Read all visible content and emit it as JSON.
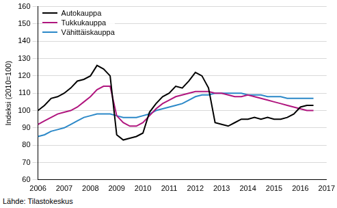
{
  "chart_data": {
    "type": "line",
    "y_label": "Indeksi (2010=100)",
    "source": "Lähde: Tilastokeskus",
    "x": [
      2006,
      2006.25,
      2006.5,
      2006.75,
      2007,
      2007.25,
      2007.5,
      2007.75,
      2008,
      2008.25,
      2008.5,
      2008.75,
      2009,
      2009.25,
      2009.5,
      2009.75,
      2010,
      2010.25,
      2010.5,
      2010.75,
      2011,
      2011.25,
      2011.5,
      2011.75,
      2012,
      2012.25,
      2012.5,
      2012.75,
      2013,
      2013.25,
      2013.5,
      2013.75,
      2014,
      2014.25,
      2014.5,
      2014.75,
      2015,
      2015.25,
      2015.5,
      2015.75,
      2016,
      2016.25,
      2016.5
    ],
    "series": [
      {
        "name": "Autokauppa",
        "color": "#000000",
        "values": [
          100,
          103,
          107,
          108,
          110,
          113,
          117,
          118,
          120,
          126,
          124,
          120,
          86,
          83,
          84,
          85,
          87,
          99,
          104,
          108,
          110,
          114,
          113,
          117,
          122,
          120,
          113,
          93,
          92,
          91,
          93,
          95,
          95,
          96,
          95,
          96,
          95,
          95,
          96,
          98,
          102,
          103,
          103
        ]
      },
      {
        "name": "Tukkukauppa",
        "color": "#b0157e",
        "values": [
          92,
          94,
          96,
          98,
          99,
          100,
          102,
          105,
          108,
          112,
          114,
          114,
          97,
          93,
          91,
          91,
          93,
          97,
          101,
          104,
          106,
          108,
          109,
          110,
          111,
          111,
          111,
          110,
          110,
          109,
          108,
          108,
          109,
          108,
          107,
          106,
          105,
          104,
          103,
          102,
          101,
          100,
          100
        ]
      },
      {
        "name": "Vähittäiskauppa",
        "color": "#2b88c8",
        "values": [
          85,
          86,
          88,
          89,
          90,
          92,
          94,
          96,
          97,
          98,
          98,
          98,
          97,
          96,
          96,
          96,
          97,
          98,
          100,
          101,
          102,
          103,
          104,
          106,
          108,
          109,
          109,
          110,
          110,
          110,
          110,
          110,
          109,
          109,
          109,
          108,
          108,
          108,
          107,
          107,
          107,
          107,
          107
        ]
      }
    ],
    "xlim": [
      2006,
      2017
    ],
    "xticks": [
      2006,
      2007,
      2008,
      2009,
      2010,
      2011,
      2012,
      2013,
      2014,
      2015,
      2016,
      2017
    ],
    "ylim": [
      60,
      160
    ],
    "yticks": [
      60,
      70,
      80,
      90,
      100,
      110,
      120,
      130,
      140,
      150,
      160
    ],
    "grid": true,
    "legend": "upper left"
  }
}
